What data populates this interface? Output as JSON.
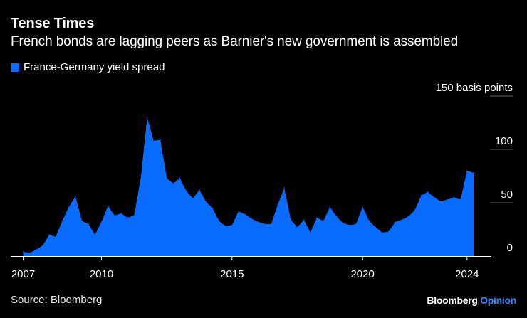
{
  "header": {
    "title": "Tense Times",
    "subtitle": "French bonds are lagging peers as Barnier's new government is assembled"
  },
  "legend": {
    "label": "France-Germany yield spread",
    "color": "#0a6cff"
  },
  "footer": {
    "source": "Source: Bloomberg",
    "brand_main": "Bloomberg",
    "brand_sub": "Opinion"
  },
  "chart_data": {
    "type": "area",
    "title": "Tense Times",
    "subtitle": "French bonds are lagging peers as Barnier's new government is assembled",
    "series": [
      {
        "name": "France-Germany yield spread",
        "color": "#0a6cff",
        "x": [
          2007.0,
          2007.25,
          2007.5,
          2007.75,
          2008.0,
          2008.25,
          2008.5,
          2008.75,
          2009.0,
          2009.25,
          2009.5,
          2009.75,
          2010.0,
          2010.25,
          2010.5,
          2010.75,
          2011.0,
          2011.25,
          2011.5,
          2011.75,
          2012.0,
          2012.25,
          2012.5,
          2012.75,
          2013.0,
          2013.25,
          2013.5,
          2013.75,
          2014.0,
          2014.25,
          2014.5,
          2014.75,
          2015.0,
          2015.25,
          2015.5,
          2015.75,
          2016.0,
          2016.25,
          2016.5,
          2016.75,
          2017.0,
          2017.25,
          2017.5,
          2017.75,
          2018.0,
          2018.25,
          2018.5,
          2018.75,
          2019.0,
          2019.25,
          2019.5,
          2019.75,
          2020.0,
          2020.25,
          2020.5,
          2020.75,
          2021.0,
          2021.25,
          2021.5,
          2021.75,
          2022.0,
          2022.25,
          2022.5,
          2022.75,
          2023.0,
          2023.25,
          2023.5,
          2023.75,
          2024.0,
          2024.25
        ],
        "values": [
          4,
          3,
          6,
          10,
          20,
          18,
          33,
          46,
          56,
          33,
          30,
          20,
          32,
          47,
          38,
          40,
          36,
          38,
          72,
          130,
          108,
          109,
          73,
          68,
          73,
          61,
          54,
          62,
          51,
          45,
          33,
          28,
          29,
          42,
          39,
          35,
          32,
          30,
          30,
          48,
          64,
          34,
          27,
          34,
          22,
          36,
          33,
          46,
          37,
          31,
          29,
          30,
          46,
          33,
          27,
          22,
          23,
          32,
          34,
          37,
          43,
          57,
          60,
          55,
          51,
          53,
          55,
          53,
          80,
          78
        ]
      }
    ],
    "x_ticks": [
      2007,
      2010,
      2015,
      2020,
      2024
    ],
    "y_ticks": [
      0,
      50,
      100,
      150
    ],
    "y_tick_labels": [
      "0",
      "50",
      "100",
      "150 basis points"
    ],
    "xlim": [
      2006.85,
      2024.25
    ],
    "ylim": [
      0,
      150
    ],
    "xlabel": "",
    "ylabel": "basis points",
    "grid": true
  }
}
